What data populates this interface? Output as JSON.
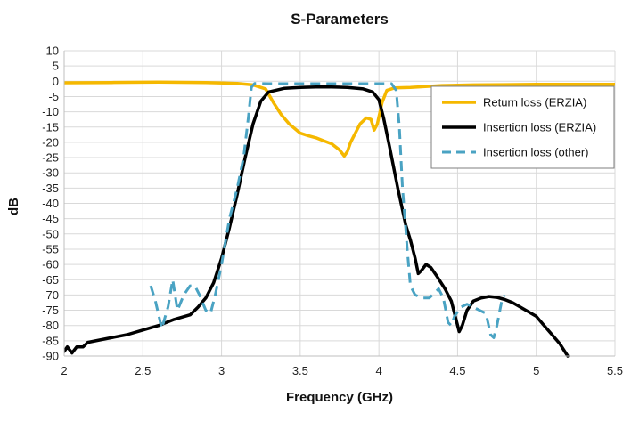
{
  "chart_data": {
    "type": "line",
    "title": "S-Parameters",
    "xlabel": "Frequency (GHz)",
    "ylabel": "dB",
    "xlim": [
      2,
      5.5
    ],
    "ylim": [
      -90,
      10
    ],
    "x_ticks": [
      "2",
      "2.5",
      "3",
      "3.5",
      "4",
      "4.5",
      "5",
      "5.5"
    ],
    "y_ticks": [
      "10",
      "5",
      "0",
      "-5",
      "-10",
      "-15",
      "-20",
      "-25",
      "-30",
      "-35",
      "-40",
      "-45",
      "-50",
      "-55",
      "-60",
      "-65",
      "-70",
      "-75",
      "-80",
      "-85",
      "-90"
    ],
    "grid": true,
    "legend_position": "top-right",
    "series": [
      {
        "name": "Return loss (ERZIA)",
        "color": "#f5b800",
        "style": "solid",
        "points": [
          [
            2.0,
            -0.5
          ],
          [
            2.3,
            -0.4
          ],
          [
            2.6,
            -0.3
          ],
          [
            2.9,
            -0.4
          ],
          [
            3.1,
            -0.7
          ],
          [
            3.2,
            -1.2
          ],
          [
            3.28,
            -2.5
          ],
          [
            3.33,
            -7
          ],
          [
            3.38,
            -11
          ],
          [
            3.43,
            -14
          ],
          [
            3.5,
            -17
          ],
          [
            3.55,
            -17.8
          ],
          [
            3.6,
            -18.5
          ],
          [
            3.65,
            -19.5
          ],
          [
            3.7,
            -20.5
          ],
          [
            3.75,
            -22.5
          ],
          [
            3.78,
            -24.5
          ],
          [
            3.8,
            -23
          ],
          [
            3.82,
            -20
          ],
          [
            3.85,
            -17
          ],
          [
            3.88,
            -14
          ],
          [
            3.92,
            -12
          ],
          [
            3.95,
            -12.5
          ],
          [
            3.97,
            -16
          ],
          [
            3.99,
            -14
          ],
          [
            4.02,
            -7
          ],
          [
            4.05,
            -3
          ],
          [
            4.1,
            -2.2
          ],
          [
            4.2,
            -2
          ],
          [
            4.4,
            -1.4
          ],
          [
            4.6,
            -1.2
          ],
          [
            4.8,
            -1.1
          ],
          [
            5.0,
            -1.0
          ],
          [
            5.2,
            -1.0
          ],
          [
            5.5,
            -1.0
          ]
        ]
      },
      {
        "name": "Insertion loss (ERZIA)",
        "color": "#000000",
        "style": "solid",
        "points": [
          [
            2.0,
            -88.5
          ],
          [
            2.02,
            -87
          ],
          [
            2.05,
            -89
          ],
          [
            2.08,
            -87
          ],
          [
            2.12,
            -87
          ],
          [
            2.15,
            -85.5
          ],
          [
            2.2,
            -85
          ],
          [
            2.3,
            -84
          ],
          [
            2.4,
            -83
          ],
          [
            2.5,
            -81.5
          ],
          [
            2.6,
            -80
          ],
          [
            2.7,
            -78
          ],
          [
            2.8,
            -76.5
          ],
          [
            2.85,
            -74
          ],
          [
            2.9,
            -71
          ],
          [
            2.95,
            -66
          ],
          [
            3.0,
            -58
          ],
          [
            3.05,
            -48
          ],
          [
            3.1,
            -37
          ],
          [
            3.15,
            -25
          ],
          [
            3.2,
            -14
          ],
          [
            3.25,
            -6.5
          ],
          [
            3.3,
            -3.5
          ],
          [
            3.4,
            -2.3
          ],
          [
            3.5,
            -2
          ],
          [
            3.6,
            -1.9
          ],
          [
            3.7,
            -1.9
          ],
          [
            3.8,
            -2
          ],
          [
            3.9,
            -2.5
          ],
          [
            3.96,
            -3.5
          ],
          [
            4.0,
            -6
          ],
          [
            4.03,
            -12
          ],
          [
            4.07,
            -22
          ],
          [
            4.12,
            -35
          ],
          [
            4.17,
            -47
          ],
          [
            4.2,
            -52
          ],
          [
            4.23,
            -58
          ],
          [
            4.25,
            -63
          ],
          [
            4.27,
            -62
          ],
          [
            4.3,
            -60
          ],
          [
            4.33,
            -61
          ],
          [
            4.37,
            -64
          ],
          [
            4.42,
            -68
          ],
          [
            4.46,
            -72
          ],
          [
            4.49,
            -78
          ],
          [
            4.51,
            -82
          ],
          [
            4.53,
            -80
          ],
          [
            4.56,
            -75
          ],
          [
            4.6,
            -72
          ],
          [
            4.65,
            -71
          ],
          [
            4.7,
            -70.5
          ],
          [
            4.75,
            -70.8
          ],
          [
            4.8,
            -71.5
          ],
          [
            4.85,
            -72.5
          ],
          [
            4.9,
            -74
          ],
          [
            4.95,
            -75.5
          ],
          [
            5.0,
            -77
          ],
          [
            5.05,
            -80
          ],
          [
            5.1,
            -83
          ],
          [
            5.15,
            -86
          ],
          [
            5.2,
            -90
          ]
        ]
      },
      {
        "name": "Insertion loss (other)",
        "color": "#4aa3c3",
        "style": "dashed",
        "points": [
          [
            2.55,
            -67
          ],
          [
            2.58,
            -72
          ],
          [
            2.62,
            -81
          ],
          [
            2.66,
            -74
          ],
          [
            2.69,
            -65
          ],
          [
            2.72,
            -75
          ],
          [
            2.76,
            -70
          ],
          [
            2.8,
            -67
          ],
          [
            2.83,
            -67
          ],
          [
            2.86,
            -70
          ],
          [
            2.9,
            -75
          ],
          [
            2.93,
            -76
          ],
          [
            2.96,
            -70
          ],
          [
            3.0,
            -60
          ],
          [
            3.05,
            -45
          ],
          [
            3.1,
            -35
          ],
          [
            3.14,
            -25
          ],
          [
            3.17,
            -12
          ],
          [
            3.19,
            -2
          ],
          [
            3.21,
            -0.7
          ],
          [
            3.3,
            -0.8
          ],
          [
            3.5,
            -0.8
          ],
          [
            3.7,
            -0.8
          ],
          [
            3.9,
            -0.8
          ],
          [
            4.08,
            -0.8
          ],
          [
            4.11,
            -3
          ],
          [
            4.13,
            -15
          ],
          [
            4.15,
            -35
          ],
          [
            4.17,
            -48
          ],
          [
            4.18,
            -55
          ],
          [
            4.2,
            -67
          ],
          [
            4.23,
            -70
          ],
          [
            4.28,
            -71
          ],
          [
            4.32,
            -71
          ],
          [
            4.36,
            -69
          ],
          [
            4.38,
            -68
          ],
          [
            4.41,
            -71
          ],
          [
            4.44,
            -79
          ],
          [
            4.46,
            -80
          ],
          [
            4.48,
            -77
          ],
          [
            4.52,
            -74
          ],
          [
            4.56,
            -73
          ],
          [
            4.6,
            -74
          ],
          [
            4.64,
            -75
          ],
          [
            4.68,
            -76
          ],
          [
            4.71,
            -83
          ],
          [
            4.73,
            -84
          ],
          [
            4.75,
            -80
          ],
          [
            4.78,
            -72
          ],
          [
            4.8,
            -70
          ]
        ]
      }
    ]
  }
}
